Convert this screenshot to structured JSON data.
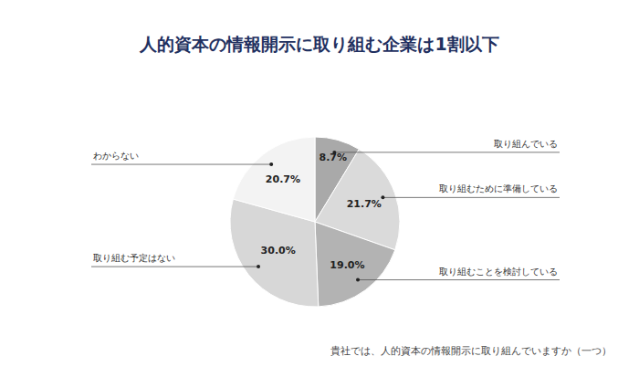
{
  "chart_data": {
    "type": "pie",
    "title": "人的資本の情報開示に取り組む企業は1割以下",
    "categories": [
      "取り組んでいる",
      "取り組むために準備している",
      "取り組むことを検討している",
      "取り組む予定はない",
      "わからない"
    ],
    "values": [
      8.7,
      21.7,
      19.0,
      30.0,
      20.7
    ],
    "value_labels": [
      "8.7%",
      "21.7%",
      "19.0%",
      "30.0%",
      "20.7%"
    ],
    "colors": [
      "#a9a9a9",
      "#dadada",
      "#b3b3b3",
      "#d7d7d7",
      "#f3f3f3"
    ],
    "data_labels": true,
    "annotations": [
      "貴社では、人的資本の情報開示に取り組んでいますか（一つ）"
    ]
  }
}
